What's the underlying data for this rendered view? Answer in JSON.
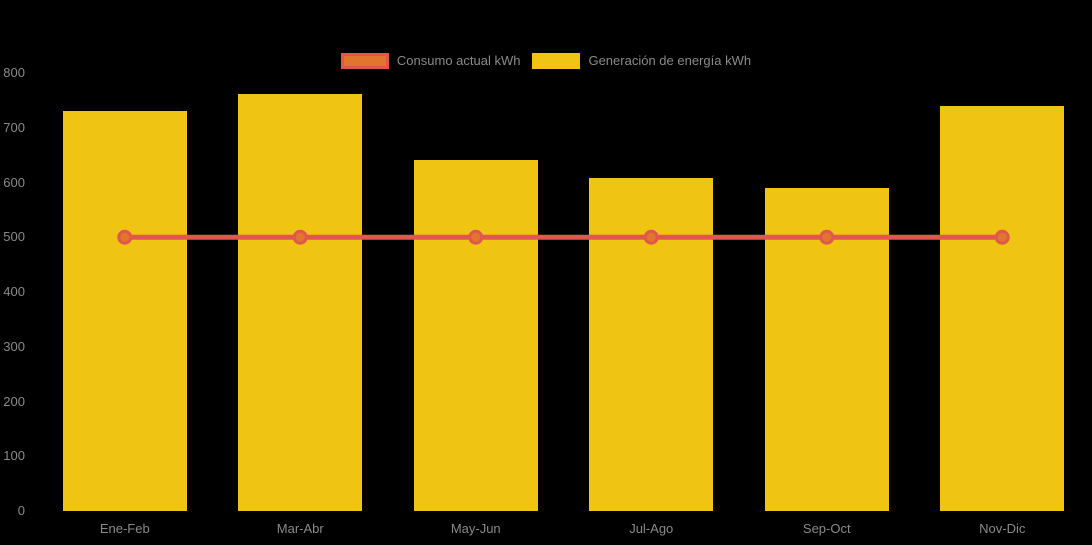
{
  "background_color": "#000000",
  "text_color": "#8a8a8a",
  "chart_data": {
    "type": "bar",
    "title": "",
    "xlabel": "",
    "ylabel": "",
    "categories": [
      "Ene-Feb",
      "Mar-Abr",
      "May-Jun",
      "Jul-Ago",
      "Sep-Oct",
      "Nov-Dic"
    ],
    "series": [
      {
        "name": "Consumo actual kWh",
        "type": "line",
        "values": [
          500,
          500,
          500,
          500,
          500,
          500
        ],
        "color": "#e2574c",
        "marker_fill": "#e2752d"
      },
      {
        "name": "Generación de energía kWh",
        "type": "bar",
        "values": [
          730,
          762,
          642,
          608,
          590,
          740
        ],
        "color": "#f0c413"
      }
    ],
    "ylim": [
      0,
      800
    ],
    "yticks": [
      0,
      100,
      200,
      300,
      400,
      500,
      600,
      700,
      800
    ],
    "grid": false,
    "legend_position": "top"
  }
}
